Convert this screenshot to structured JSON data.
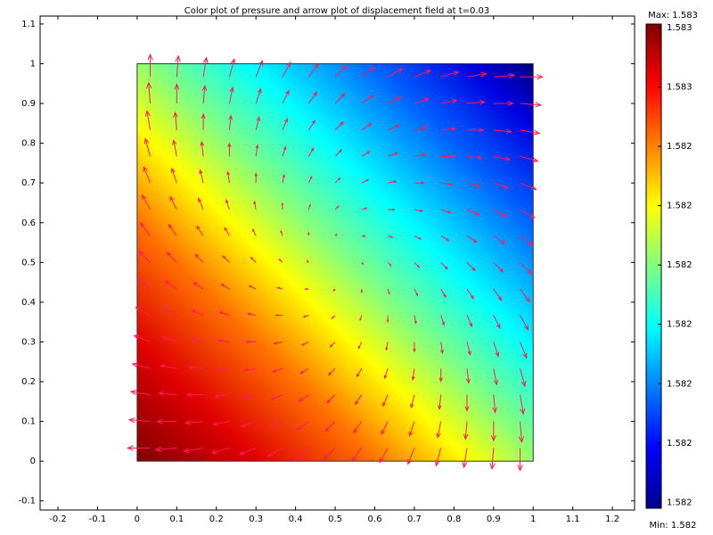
{
  "chart_data": {
    "type": "quiver",
    "title": "Color plot of pressure  and arrow plot of displacement field at t=0.03",
    "xlim": [
      -0.245,
      1.256
    ],
    "ylim": [
      -0.123,
      1.12
    ],
    "xticks": [
      -0.2,
      -0.1,
      0,
      0.1,
      0.2,
      0.3,
      0.4,
      0.5,
      0.6,
      0.7,
      0.8,
      0.9,
      1,
      1.1,
      1.2
    ],
    "yticks": [
      -0.1,
      0,
      0.1,
      0.2,
      0.3,
      0.4,
      0.5,
      0.6,
      0.7,
      0.8,
      0.9,
      1,
      1.1
    ],
    "domain_x": [
      0,
      1
    ],
    "domain_y": [
      0,
      1
    ],
    "arrow_color": "#ff1a5a",
    "quiver": {
      "x": [
        0.033,
        0.1,
        0.167,
        0.233,
        0.3,
        0.367,
        0.433,
        0.5,
        0.567,
        0.633,
        0.7,
        0.767,
        0.833,
        0.9,
        0.967
      ],
      "y": [
        0.033,
        0.1,
        0.167,
        0.233,
        0.3,
        0.367,
        0.433,
        0.5,
        0.567,
        0.633,
        0.7,
        0.767,
        0.833,
        0.9,
        0.967
      ],
      "u": [
        [
          -14,
          -13,
          -12,
          -11,
          -10,
          -9,
          -8,
          -7,
          -6,
          -5,
          -4,
          -3,
          -2,
          -1,
          0
        ],
        [
          -13,
          -12,
          -11,
          -10,
          -9,
          -8,
          -7,
          -6,
          -5,
          -4,
          -3,
          -2,
          -1,
          0,
          1
        ],
        [
          -12,
          -11,
          -10,
          -9,
          -8,
          -7,
          -6,
          -5,
          -4,
          -3,
          -2,
          -1,
          0,
          1,
          2
        ],
        [
          -11,
          -10,
          -9,
          -8,
          -7,
          -6,
          -5,
          -4,
          -3,
          -2,
          -1,
          0,
          1,
          2,
          3
        ],
        [
          -10,
          -9,
          -8,
          -7,
          -6,
          -5,
          -4,
          -3,
          -2,
          -1,
          0,
          1,
          2,
          3,
          4
        ],
        [
          -9,
          -8,
          -7,
          -6,
          -5,
          -4,
          -3,
          -2,
          -1,
          0,
          1,
          2,
          3,
          4,
          5
        ],
        [
          -8,
          -7,
          -6,
          -5,
          -4,
          -3,
          -2,
          -1,
          0,
          1,
          2,
          3,
          4,
          5,
          6
        ],
        [
          -7,
          -6,
          -5,
          -4,
          -3,
          -2,
          -1,
          0,
          1,
          2,
          3,
          4,
          5,
          6,
          7
        ],
        [
          -6,
          -5,
          -4,
          -3,
          -2,
          -1,
          0,
          1,
          2,
          3,
          4,
          5,
          6,
          7,
          8
        ],
        [
          -5,
          -4,
          -3,
          -2,
          -1,
          0,
          1,
          2,
          3,
          4,
          5,
          6,
          7,
          8,
          9
        ],
        [
          -4,
          -3,
          -2,
          -1,
          0,
          1,
          2,
          3,
          4,
          5,
          6,
          7,
          8,
          9,
          10
        ],
        [
          -3,
          -2,
          -1,
          0,
          1,
          2,
          3,
          4,
          5,
          6,
          7,
          8,
          9,
          10,
          11
        ],
        [
          -2,
          -1,
          0,
          1,
          2,
          3,
          4,
          5,
          6,
          7,
          8,
          9,
          10,
          11,
          12
        ],
        [
          -1,
          0,
          1,
          2,
          3,
          4,
          5,
          6,
          7,
          8,
          9,
          10,
          11,
          12,
          13
        ],
        [
          0,
          1,
          2,
          3,
          4,
          5,
          6,
          7,
          8,
          9,
          10,
          11,
          12,
          13,
          14
        ]
      ],
      "v": [
        [
          0,
          -1,
          -2,
          -3,
          -4,
          -5,
          -6,
          -7,
          -8,
          -9,
          -10,
          -11,
          -12,
          -13,
          -14
        ],
        [
          1,
          0,
          -1,
          -2,
          -3,
          -4,
          -5,
          -6,
          -7,
          -8,
          -9,
          -10,
          -11,
          -12,
          -13
        ],
        [
          2,
          1,
          0,
          -1,
          -2,
          -3,
          -4,
          -5,
          -6,
          -7,
          -8,
          -9,
          -10,
          -11,
          -12
        ],
        [
          3,
          2,
          1,
          0,
          -1,
          -2,
          -3,
          -4,
          -5,
          -6,
          -7,
          -8,
          -9,
          -10,
          -11
        ],
        [
          4,
          3,
          2,
          1,
          0,
          -1,
          -2,
          -3,
          -4,
          -5,
          -6,
          -7,
          -8,
          -9,
          -10
        ],
        [
          5,
          4,
          3,
          2,
          1,
          0,
          -1,
          -2,
          -3,
          -4,
          -5,
          -6,
          -7,
          -8,
          -9
        ],
        [
          6,
          5,
          4,
          3,
          2,
          1,
          0,
          -1,
          -2,
          -3,
          -4,
          -5,
          -6,
          -7,
          -8
        ],
        [
          7,
          6,
          5,
          4,
          3,
          2,
          1,
          0,
          -1,
          -2,
          -3,
          -4,
          -5,
          -6,
          -7
        ],
        [
          8,
          7,
          6,
          5,
          4,
          3,
          2,
          1,
          0,
          -1,
          -2,
          -3,
          -4,
          -5,
          -6
        ],
        [
          9,
          8,
          7,
          6,
          5,
          4,
          3,
          2,
          1,
          0,
          -1,
          -2,
          -3,
          -4,
          -5
        ],
        [
          10,
          9,
          8,
          7,
          6,
          5,
          4,
          3,
          2,
          1,
          0,
          -1,
          -2,
          -3,
          -4
        ],
        [
          11,
          10,
          9,
          8,
          7,
          6,
          5,
          4,
          3,
          2,
          1,
          0,
          -1,
          -2,
          -3
        ],
        [
          12,
          11,
          10,
          9,
          8,
          7,
          6,
          5,
          4,
          3,
          2,
          1,
          0,
          -1,
          -2
        ],
        [
          13,
          12,
          11,
          10,
          9,
          8,
          7,
          6,
          5,
          4,
          3,
          2,
          1,
          0,
          -1
        ],
        [
          14,
          13,
          12,
          11,
          10,
          9,
          8,
          7,
          6,
          5,
          4,
          3,
          2,
          1,
          0
        ]
      ]
    },
    "colorbar": {
      "clim": [
        1.582165,
        1.582573
      ],
      "max_label": "Max: 1.583",
      "min_label": "Min: 1.582",
      "ticks": [
        {
          "value": 1.58257,
          "label": "1.583"
        },
        {
          "value": 1.58252,
          "label": "1.583"
        },
        {
          "value": 1.58247,
          "label": "1.582"
        },
        {
          "value": 1.58242,
          "label": "1.582"
        },
        {
          "value": 1.58237,
          "label": "1.582"
        },
        {
          "value": 1.58232,
          "label": "1.582"
        },
        {
          "value": 1.58227,
          "label": "1.582"
        },
        {
          "value": 1.58222,
          "label": "1.582"
        },
        {
          "value": 1.58217,
          "label": "1.582"
        }
      ]
    }
  }
}
